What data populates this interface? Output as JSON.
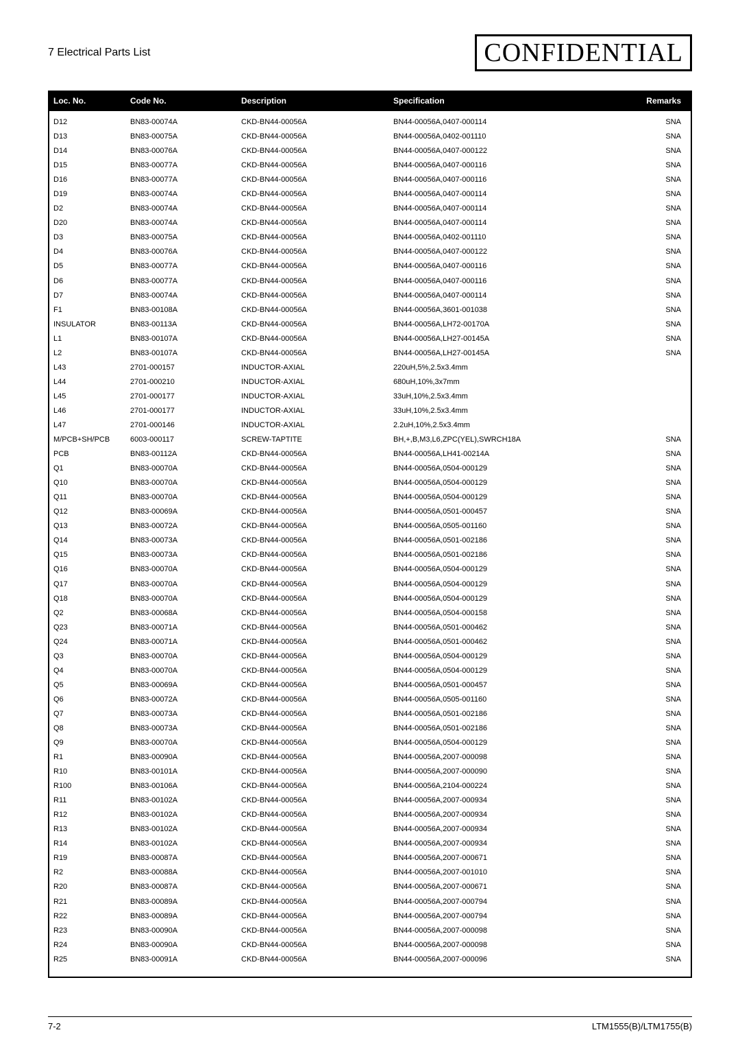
{
  "page": {
    "section_title": "7 Electrical Parts List",
    "confidential_label": "CONFIDENTIAL",
    "page_number": "7-2",
    "model_footer": "LTM1555(B)/LTM1755(B)"
  },
  "table": {
    "headers": {
      "loc": "Loc. No.",
      "code": "Code No.",
      "desc": "Description",
      "spec": "Specification",
      "remarks": "Remarks"
    },
    "rows": [
      {
        "loc": "D12",
        "code": "BN83-00074A",
        "desc": "CKD-BN44-00056A",
        "spec": "BN44-00056A,0407-000114",
        "remarks": "SNA"
      },
      {
        "loc": "D13",
        "code": "BN83-00075A",
        "desc": "CKD-BN44-00056A",
        "spec": "BN44-00056A,0402-001110",
        "remarks": "SNA"
      },
      {
        "loc": "D14",
        "code": "BN83-00076A",
        "desc": "CKD-BN44-00056A",
        "spec": "BN44-00056A,0407-000122",
        "remarks": "SNA"
      },
      {
        "loc": "D15",
        "code": "BN83-00077A",
        "desc": "CKD-BN44-00056A",
        "spec": "BN44-00056A,0407-000116",
        "remarks": "SNA"
      },
      {
        "loc": "D16",
        "code": "BN83-00077A",
        "desc": "CKD-BN44-00056A",
        "spec": "BN44-00056A,0407-000116",
        "remarks": "SNA"
      },
      {
        "loc": "D19",
        "code": "BN83-00074A",
        "desc": "CKD-BN44-00056A",
        "spec": "BN44-00056A,0407-000114",
        "remarks": "SNA"
      },
      {
        "loc": "D2",
        "code": "BN83-00074A",
        "desc": "CKD-BN44-00056A",
        "spec": "BN44-00056A,0407-000114",
        "remarks": "SNA"
      },
      {
        "loc": "D20",
        "code": "BN83-00074A",
        "desc": "CKD-BN44-00056A",
        "spec": "BN44-00056A,0407-000114",
        "remarks": "SNA"
      },
      {
        "loc": "D3",
        "code": "BN83-00075A",
        "desc": "CKD-BN44-00056A",
        "spec": "BN44-00056A,0402-001110",
        "remarks": "SNA"
      },
      {
        "loc": "D4",
        "code": "BN83-00076A",
        "desc": "CKD-BN44-00056A",
        "spec": "BN44-00056A,0407-000122",
        "remarks": "SNA"
      },
      {
        "loc": "D5",
        "code": "BN83-00077A",
        "desc": "CKD-BN44-00056A",
        "spec": "BN44-00056A,0407-000116",
        "remarks": "SNA"
      },
      {
        "loc": "D6",
        "code": "BN83-00077A",
        "desc": "CKD-BN44-00056A",
        "spec": "BN44-00056A,0407-000116",
        "remarks": "SNA"
      },
      {
        "loc": "D7",
        "code": "BN83-00074A",
        "desc": "CKD-BN44-00056A",
        "spec": "BN44-00056A,0407-000114",
        "remarks": "SNA"
      },
      {
        "loc": "F1",
        "code": "BN83-00108A",
        "desc": "CKD-BN44-00056A",
        "spec": "BN44-00056A,3601-001038",
        "remarks": "SNA"
      },
      {
        "loc": "INSULATOR",
        "code": "BN83-00113A",
        "desc": "CKD-BN44-00056A",
        "spec": "BN44-00056A,LH72-00170A",
        "remarks": "SNA"
      },
      {
        "loc": "L1",
        "code": "BN83-00107A",
        "desc": "CKD-BN44-00056A",
        "spec": "BN44-00056A,LH27-00145A",
        "remarks": "SNA"
      },
      {
        "loc": "L2",
        "code": "BN83-00107A",
        "desc": "CKD-BN44-00056A",
        "spec": "BN44-00056A,LH27-00145A",
        "remarks": "SNA"
      },
      {
        "loc": "L43",
        "code": "2701-000157",
        "desc": "INDUCTOR-AXIAL",
        "spec": "220uH,5%,2.5x3.4mm",
        "remarks": ""
      },
      {
        "loc": "L44",
        "code": "2701-000210",
        "desc": "INDUCTOR-AXIAL",
        "spec": "680uH,10%,3x7mm",
        "remarks": ""
      },
      {
        "loc": "L45",
        "code": "2701-000177",
        "desc": "INDUCTOR-AXIAL",
        "spec": "33uH,10%,2.5x3.4mm",
        "remarks": ""
      },
      {
        "loc": "L46",
        "code": "2701-000177",
        "desc": "INDUCTOR-AXIAL",
        "spec": "33uH,10%,2.5x3.4mm",
        "remarks": ""
      },
      {
        "loc": "L47",
        "code": "2701-000146",
        "desc": "INDUCTOR-AXIAL",
        "spec": "2.2uH,10%,2.5x3.4mm",
        "remarks": ""
      },
      {
        "loc": "M/PCB+SH/PCB",
        "code": "6003-000117",
        "desc": "SCREW-TAPTITE",
        "spec": "BH,+,B,M3,L6,ZPC(YEL),SWRCH18A",
        "remarks": "SNA"
      },
      {
        "loc": "PCB",
        "code": "BN83-00112A",
        "desc": "CKD-BN44-00056A",
        "spec": "BN44-00056A,LH41-00214A",
        "remarks": "SNA"
      },
      {
        "loc": "Q1",
        "code": "BN83-00070A",
        "desc": "CKD-BN44-00056A",
        "spec": "BN44-00056A,0504-000129",
        "remarks": "SNA"
      },
      {
        "loc": "Q10",
        "code": "BN83-00070A",
        "desc": "CKD-BN44-00056A",
        "spec": "BN44-00056A,0504-000129",
        "remarks": "SNA"
      },
      {
        "loc": "Q11",
        "code": "BN83-00070A",
        "desc": "CKD-BN44-00056A",
        "spec": "BN44-00056A,0504-000129",
        "remarks": "SNA"
      },
      {
        "loc": "Q12",
        "code": "BN83-00069A",
        "desc": "CKD-BN44-00056A",
        "spec": "BN44-00056A,0501-000457",
        "remarks": "SNA"
      },
      {
        "loc": "Q13",
        "code": "BN83-00072A",
        "desc": "CKD-BN44-00056A",
        "spec": "BN44-00056A,0505-001160",
        "remarks": "SNA"
      },
      {
        "loc": "Q14",
        "code": "BN83-00073A",
        "desc": "CKD-BN44-00056A",
        "spec": "BN44-00056A,0501-002186",
        "remarks": "SNA"
      },
      {
        "loc": "Q15",
        "code": "BN83-00073A",
        "desc": "CKD-BN44-00056A",
        "spec": "BN44-00056A,0501-002186",
        "remarks": "SNA"
      },
      {
        "loc": "Q16",
        "code": "BN83-00070A",
        "desc": "CKD-BN44-00056A",
        "spec": "BN44-00056A,0504-000129",
        "remarks": "SNA"
      },
      {
        "loc": "Q17",
        "code": "BN83-00070A",
        "desc": "CKD-BN44-00056A",
        "spec": "BN44-00056A,0504-000129",
        "remarks": "SNA"
      },
      {
        "loc": "Q18",
        "code": "BN83-00070A",
        "desc": "CKD-BN44-00056A",
        "spec": "BN44-00056A,0504-000129",
        "remarks": "SNA"
      },
      {
        "loc": "Q2",
        "code": "BN83-00068A",
        "desc": "CKD-BN44-00056A",
        "spec": "BN44-00056A,0504-000158",
        "remarks": "SNA"
      },
      {
        "loc": "Q23",
        "code": "BN83-00071A",
        "desc": "CKD-BN44-00056A",
        "spec": "BN44-00056A,0501-000462",
        "remarks": "SNA"
      },
      {
        "loc": "Q24",
        "code": "BN83-00071A",
        "desc": "CKD-BN44-00056A",
        "spec": "BN44-00056A,0501-000462",
        "remarks": "SNA"
      },
      {
        "loc": "Q3",
        "code": "BN83-00070A",
        "desc": "CKD-BN44-00056A",
        "spec": "BN44-00056A,0504-000129",
        "remarks": "SNA"
      },
      {
        "loc": "Q4",
        "code": "BN83-00070A",
        "desc": "CKD-BN44-00056A",
        "spec": "BN44-00056A,0504-000129",
        "remarks": "SNA"
      },
      {
        "loc": "Q5",
        "code": "BN83-00069A",
        "desc": "CKD-BN44-00056A",
        "spec": "BN44-00056A,0501-000457",
        "remarks": "SNA"
      },
      {
        "loc": "Q6",
        "code": "BN83-00072A",
        "desc": "CKD-BN44-00056A",
        "spec": "BN44-00056A,0505-001160",
        "remarks": "SNA"
      },
      {
        "loc": "Q7",
        "code": "BN83-00073A",
        "desc": "CKD-BN44-00056A",
        "spec": "BN44-00056A,0501-002186",
        "remarks": "SNA"
      },
      {
        "loc": "Q8",
        "code": "BN83-00073A",
        "desc": "CKD-BN44-00056A",
        "spec": "BN44-00056A,0501-002186",
        "remarks": "SNA"
      },
      {
        "loc": "Q9",
        "code": "BN83-00070A",
        "desc": "CKD-BN44-00056A",
        "spec": "BN44-00056A,0504-000129",
        "remarks": "SNA"
      },
      {
        "loc": "R1",
        "code": "BN83-00090A",
        "desc": "CKD-BN44-00056A",
        "spec": "BN44-00056A,2007-000098",
        "remarks": "SNA"
      },
      {
        "loc": "R10",
        "code": "BN83-00101A",
        "desc": "CKD-BN44-00056A",
        "spec": "BN44-00056A,2007-000090",
        "remarks": "SNA"
      },
      {
        "loc": "R100",
        "code": "BN83-00106A",
        "desc": "CKD-BN44-00056A",
        "spec": "BN44-00056A,2104-000224",
        "remarks": "SNA"
      },
      {
        "loc": "R11",
        "code": "BN83-00102A",
        "desc": "CKD-BN44-00056A",
        "spec": "BN44-00056A,2007-000934",
        "remarks": "SNA"
      },
      {
        "loc": "R12",
        "code": "BN83-00102A",
        "desc": "CKD-BN44-00056A",
        "spec": "BN44-00056A,2007-000934",
        "remarks": "SNA"
      },
      {
        "loc": "R13",
        "code": "BN83-00102A",
        "desc": "CKD-BN44-00056A",
        "spec": "BN44-00056A,2007-000934",
        "remarks": "SNA"
      },
      {
        "loc": "R14",
        "code": "BN83-00102A",
        "desc": "CKD-BN44-00056A",
        "spec": "BN44-00056A,2007-000934",
        "remarks": "SNA"
      },
      {
        "loc": "R19",
        "code": "BN83-00087A",
        "desc": "CKD-BN44-00056A",
        "spec": "BN44-00056A,2007-000671",
        "remarks": "SNA"
      },
      {
        "loc": "R2",
        "code": "BN83-00088A",
        "desc": "CKD-BN44-00056A",
        "spec": "BN44-00056A,2007-001010",
        "remarks": "SNA"
      },
      {
        "loc": "R20",
        "code": "BN83-00087A",
        "desc": "CKD-BN44-00056A",
        "spec": "BN44-00056A,2007-000671",
        "remarks": "SNA"
      },
      {
        "loc": "R21",
        "code": "BN83-00089A",
        "desc": "CKD-BN44-00056A",
        "spec": "BN44-00056A,2007-000794",
        "remarks": "SNA"
      },
      {
        "loc": "R22",
        "code": "BN83-00089A",
        "desc": "CKD-BN44-00056A",
        "spec": "BN44-00056A,2007-000794",
        "remarks": "SNA"
      },
      {
        "loc": "R23",
        "code": "BN83-00090A",
        "desc": "CKD-BN44-00056A",
        "spec": "BN44-00056A,2007-000098",
        "remarks": "SNA"
      },
      {
        "loc": "R24",
        "code": "BN83-00090A",
        "desc": "CKD-BN44-00056A",
        "spec": "BN44-00056A,2007-000098",
        "remarks": "SNA"
      },
      {
        "loc": "R25",
        "code": "BN83-00091A",
        "desc": "CKD-BN44-00056A",
        "spec": "BN44-00056A,2007-000096",
        "remarks": "SNA"
      }
    ]
  }
}
